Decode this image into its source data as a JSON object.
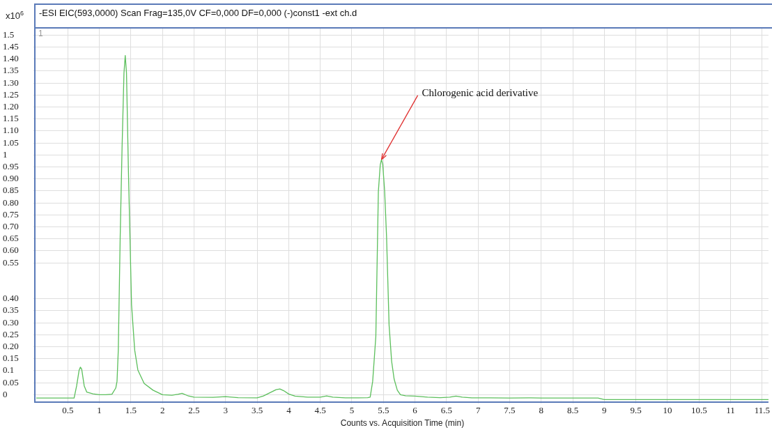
{
  "chart_data": {
    "type": "line",
    "title": "-ESI EIC(593,0000) Scan Frag=135,0V CF=0,000 DF=0,000 (-)const1 -ext ch.d",
    "ylabel": "x10$^{6}$",
    "xlabel": "Counts vs. Acquisition Time (min)",
    "annotations": [
      "1",
      {
        "text": "Chlorogenic acid derivative",
        "x": 5.47,
        "y": 0.981
      }
    ],
    "x": [
      0,
      0.3,
      0.6,
      0.64,
      0.68,
      0.7,
      0.72,
      0.76,
      0.8,
      0.9,
      1.0,
      1.1,
      1.2,
      1.26,
      1.28,
      1.3,
      1.33,
      1.36,
      1.39,
      1.41,
      1.43,
      1.46,
      1.51,
      1.56,
      1.61,
      1.71,
      1.85,
      2.0,
      2.15,
      2.25,
      2.31,
      2.4,
      2.5,
      2.8,
      3.0,
      3.2,
      3.5,
      3.6,
      3.7,
      3.8,
      3.86,
      3.92,
      4.0,
      4.1,
      4.3,
      4.5,
      4.6,
      4.7,
      4.9,
      5.1,
      5.25,
      5.29,
      5.33,
      5.38,
      5.42,
      5.45,
      5.47,
      5.49,
      5.52,
      5.55,
      5.59,
      5.63,
      5.67,
      5.72,
      5.77,
      5.85,
      6.0,
      6.2,
      6.4,
      6.55,
      6.65,
      6.75,
      6.9,
      7.2,
      7.5,
      7.8,
      8.0,
      8.3,
      8.6,
      8.9,
      9.0,
      9.5,
      10.0,
      10.5,
      11.0,
      11.6
    ],
    "series": [
      {
        "color": "#5cbf5c",
        "values": [
          -0.014,
          -0.014,
          -0.014,
          0.037,
          0.103,
          0.115,
          0.107,
          0.037,
          0.011,
          0.004,
          0.0,
          0.0,
          0.002,
          0.028,
          0.056,
          0.186,
          0.658,
          1.033,
          1.342,
          1.415,
          1.342,
          0.94,
          0.375,
          0.186,
          0.103,
          0.047,
          0.019,
          0.0,
          -0.002,
          0.002,
          0.006,
          -0.004,
          -0.01,
          -0.011,
          -0.008,
          -0.012,
          -0.013,
          -0.005,
          0.008,
          0.021,
          0.024,
          0.017,
          0.003,
          -0.006,
          -0.01,
          -0.01,
          -0.005,
          -0.01,
          -0.013,
          -0.013,
          -0.012,
          -0.01,
          0.056,
          0.243,
          0.847,
          0.959,
          0.981,
          0.959,
          0.847,
          0.658,
          0.29,
          0.14,
          0.065,
          0.019,
          0.0,
          -0.004,
          -0.006,
          -0.01,
          -0.012,
          -0.01,
          -0.006,
          -0.01,
          -0.013,
          -0.013,
          -0.014,
          -0.013,
          -0.014,
          -0.014,
          -0.014,
          -0.014,
          -0.02,
          -0.02,
          -0.02,
          -0.02,
          -0.02,
          -0.02
        ]
      }
    ],
    "xlim": [
      0,
      11.6
    ],
    "xticks": [
      0.5,
      1,
      1.5,
      2,
      2.5,
      3,
      3.5,
      4,
      4.5,
      5,
      5.5,
      6,
      6.5,
      7,
      7.5,
      8,
      8.5,
      9,
      9.5,
      10,
      10.5,
      11,
      11.5
    ],
    "ylim": [
      -0.025,
      1.53
    ],
    "yticks": [
      0,
      0.05,
      {
        "value": 0.1,
        "label": "0.1"
      },
      0.15,
      {
        "value": 0.2,
        "label": "0.20"
      },
      0.25,
      {
        "value": 0.3,
        "label": "0.30"
      },
      0.35,
      {
        "value": 0.4,
        "label": "0.40"
      },
      0.55,
      {
        "value": 0.6,
        "label": "0.60"
      },
      0.65,
      {
        "value": 0.7,
        "label": "0.70"
      },
      0.75,
      {
        "value": 0.8,
        "label": "0.80"
      },
      0.85,
      {
        "value": 0.9,
        "label": "0.90"
      },
      0.95,
      1,
      1.05,
      {
        "value": 1.1,
        "label": "1.10"
      },
      1.15,
      {
        "value": 1.2,
        "label": "1.20"
      },
      1.25,
      {
        "value": 1.3,
        "label": "1.30"
      },
      1.35,
      {
        "value": 1.4,
        "label": "1.40"
      },
      1.45,
      1.5
    ],
    "grid": true,
    "legend": false,
    "marker": "none",
    "line_style": "solid"
  }
}
